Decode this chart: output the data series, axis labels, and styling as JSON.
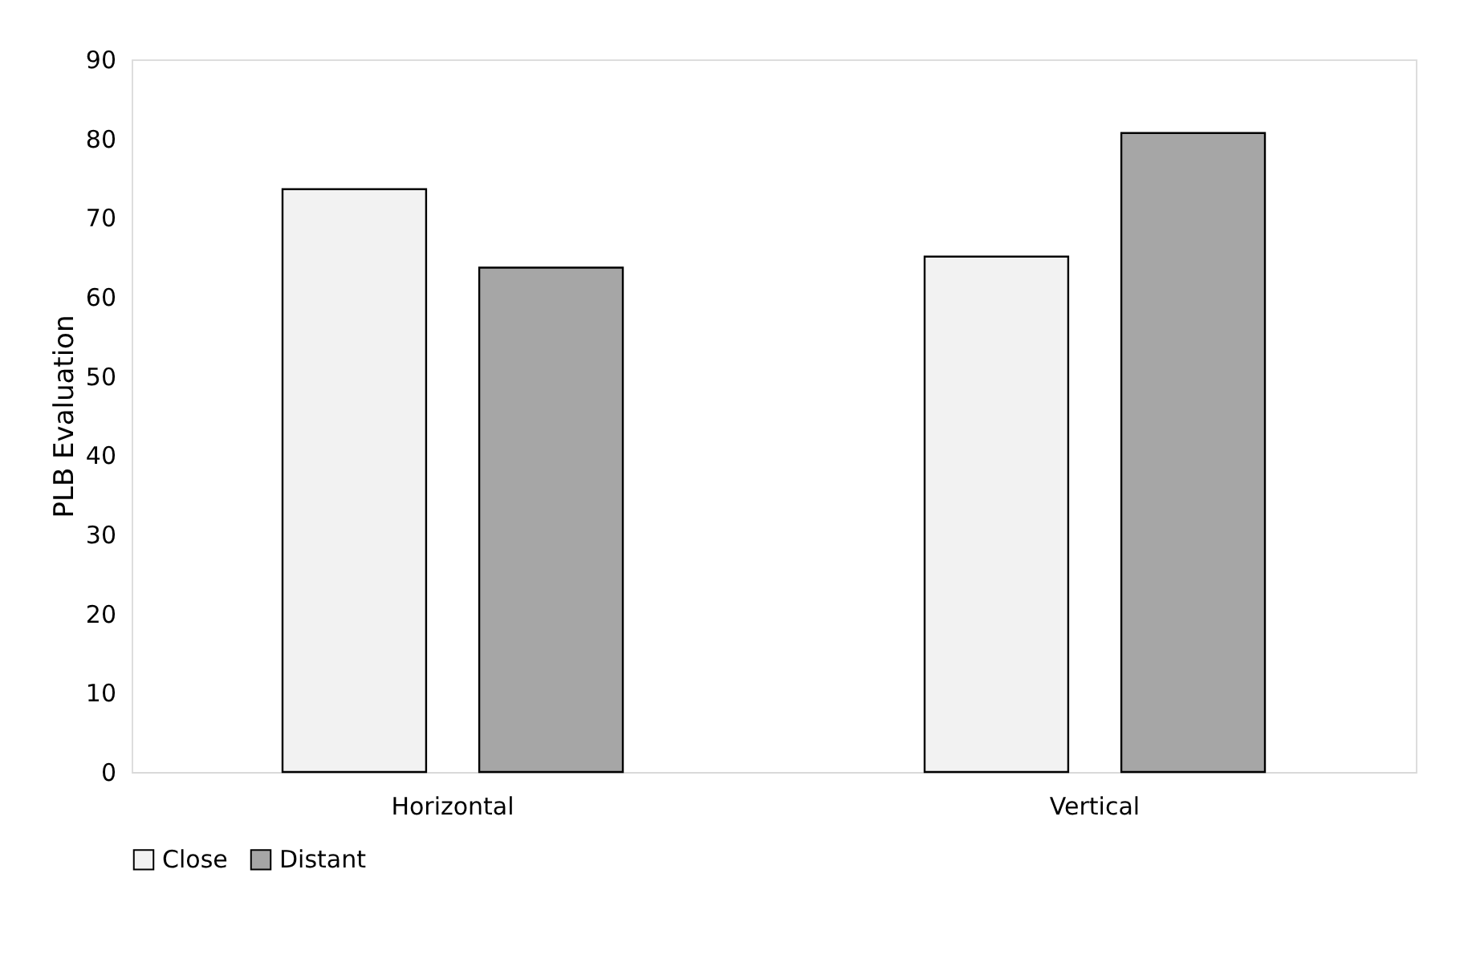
{
  "chart_data": {
    "type": "bar",
    "ylabel": "PLB Evaluation",
    "categories": [
      "Horizontal",
      "Vertical"
    ],
    "series": [
      {
        "name": "Close",
        "color": "#f2f2f2",
        "values": [
          73.6,
          65.1
        ]
      },
      {
        "name": "Distant",
        "color": "#a6a6a6",
        "values": [
          63.7,
          80.7
        ]
      }
    ],
    "ylim": [
      0,
      90
    ],
    "yticks": [
      0,
      10,
      20,
      30,
      40,
      50,
      60,
      70,
      80,
      90
    ],
    "grid": false,
    "legend": "bottom"
  }
}
